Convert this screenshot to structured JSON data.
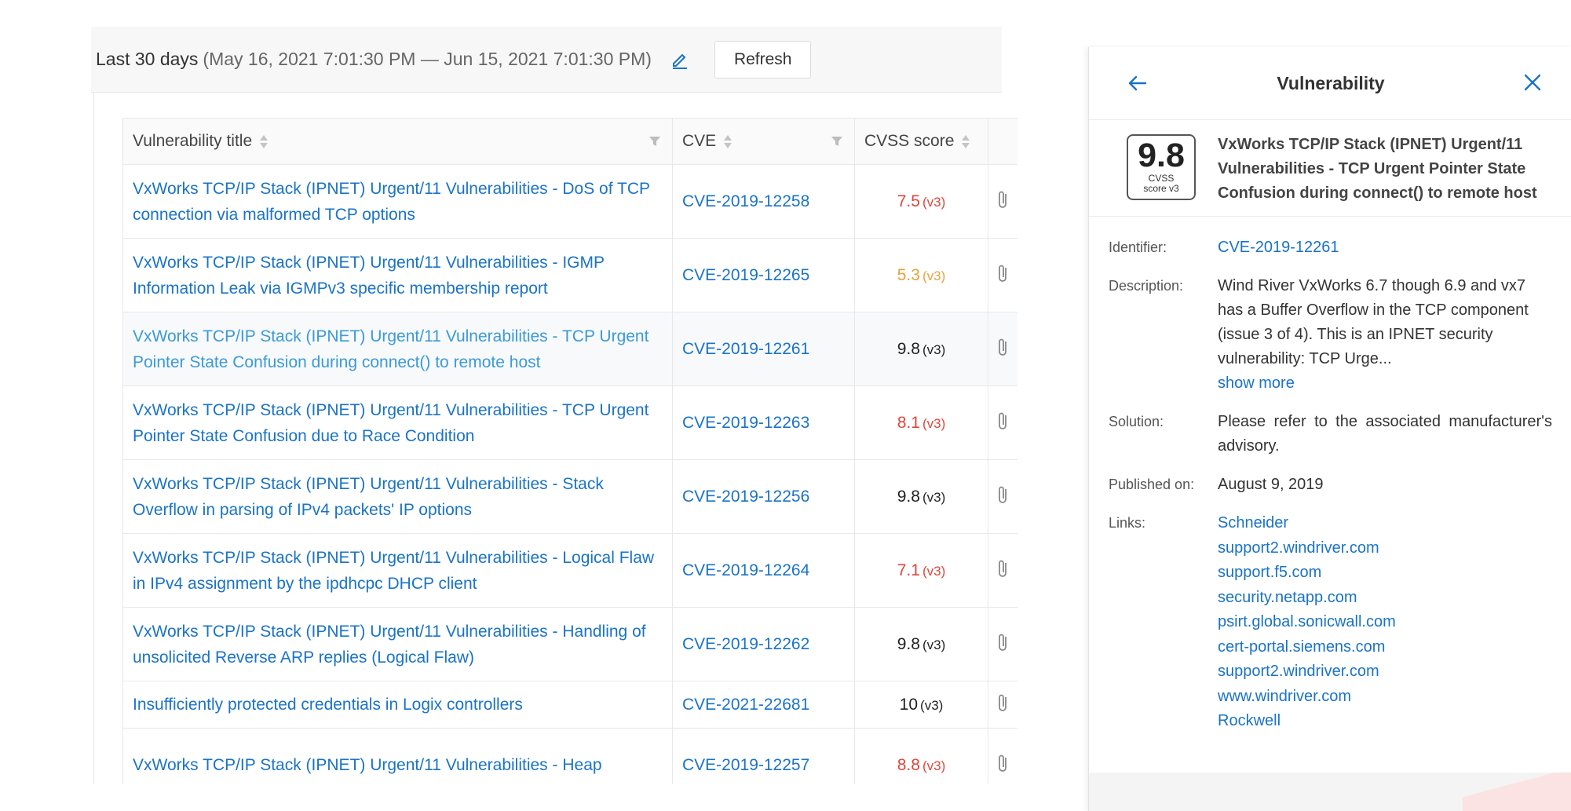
{
  "toolbar": {
    "range_label": "Last 30 days",
    "range_detail": "(May 16, 2021 7:01:30 PM — Jun 15, 2021 7:01:30 PM)",
    "refresh_label": "Refresh"
  },
  "table": {
    "columns": {
      "title": "Vulnerability title",
      "cve": "CVE",
      "score": "CVSS score"
    },
    "rows": [
      {
        "title": "VxWorks TCP/IP Stack (IPNET) Urgent/11 Vulnerabilities - DoS of TCP connection via malformed TCP options",
        "cve": "CVE-2019-12258",
        "score": "7.5",
        "version": "(v3)",
        "color": "#e0453a"
      },
      {
        "title": "VxWorks TCP/IP Stack (IPNET) Urgent/11 Vulnerabilities - IGMP Information Leak via IGMPv3 specific membership report",
        "cve": "CVE-2019-12265",
        "score": "5.3",
        "version": "(v3)",
        "color": "#e8a23a"
      },
      {
        "title": "VxWorks TCP/IP Stack (IPNET) Urgent/11 Vulnerabilities - TCP Urgent Pointer State Confusion during connect() to remote host",
        "cve": "CVE-2019-12261",
        "score": "9.8",
        "version": "(v3)",
        "color": "#222222"
      },
      {
        "title": "VxWorks TCP/IP Stack (IPNET) Urgent/11 Vulnerabilities - TCP Urgent Pointer State Confusion due to Race Condition",
        "cve": "CVE-2019-12263",
        "score": "8.1",
        "version": "(v3)",
        "color": "#e0453a"
      },
      {
        "title": "VxWorks TCP/IP Stack (IPNET) Urgent/11 Vulnerabilities - Stack Overflow in parsing of IPv4 packets' IP options",
        "cve": "CVE-2019-12256",
        "score": "9.8",
        "version": "(v3)",
        "color": "#222222"
      },
      {
        "title": "VxWorks TCP/IP Stack (IPNET) Urgent/11 Vulnerabilities - Logical Flaw in IPv4 assignment by the ipdhcpc DHCP client",
        "cve": "CVE-2019-12264",
        "score": "7.1",
        "version": "(v3)",
        "color": "#e0453a"
      },
      {
        "title": "VxWorks TCP/IP Stack (IPNET) Urgent/11 Vulnerabilities - Handling of unsolicited Reverse ARP replies (Logical Flaw)",
        "cve": "CVE-2019-12262",
        "score": "9.8",
        "version": "(v3)",
        "color": "#222222"
      },
      {
        "title": "Insufficiently protected credentials in Logix controllers",
        "cve": "CVE-2021-22681",
        "score": "10",
        "version": "(v3)",
        "color": "#222222"
      },
      {
        "title": "VxWorks TCP/IP Stack (IPNET) Urgent/11 Vulnerabilities - Heap",
        "cve": "CVE-2019-12257",
        "score": "8.8",
        "version": "(v3)",
        "color": "#e0453a"
      }
    ]
  },
  "panel": {
    "title": "Vulnerability",
    "score": "9.8",
    "score_caption_1": "CVSS",
    "score_caption_2": "score v3",
    "summary_title": "VxWorks TCP/IP Stack (IPNET) Urgent/11 Vulnerabilities - TCP Urgent Pointer State Confusion during connect() to remote host",
    "identifier_label": "Identifier:",
    "identifier": "CVE-2019-12261",
    "description_label": "Description:",
    "description": "Wind River VxWorks 6.7 though 6.9 and vx7 has a Buffer Overflow in the TCP component (issue 3 of 4). This is an IPNET security vulnerability: TCP Urge...",
    "show_more": "show more",
    "solution_label": "Solution:",
    "solution": "Please refer to the associated manufacturer's advisory.",
    "published_label": "Published on:",
    "published": "August 9, 2019",
    "links_label": "Links:",
    "links": [
      "Schneider",
      "support2.windriver.com",
      "support.f5.com",
      "security.netapp.com",
      "psirt.global.sonicwall.com",
      "cert-portal.siemens.com",
      "support2.windriver.com",
      "www.windriver.com",
      "Rockwell"
    ]
  },
  "icons": {
    "edit": "pencil-icon",
    "back": "arrow-left-icon",
    "close": "close-icon",
    "sort": "sort-icon",
    "filter": "filter-icon",
    "attachment": "paperclip-icon"
  },
  "colors": {
    "link": "#1a73c5",
    "high": "#e0453a",
    "medium": "#e8a23a"
  }
}
